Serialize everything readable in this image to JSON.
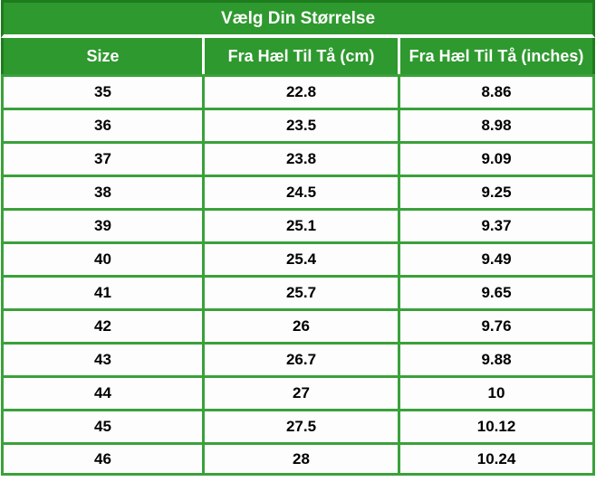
{
  "chart_data": {
    "type": "table",
    "title": "Vælg Din Størrelse",
    "columns": [
      "Size",
      "Fra Hæl Til Tå (cm)",
      "Fra Hæl Til Tå (inches)"
    ],
    "rows": [
      [
        "35",
        "22.8",
        "8.86"
      ],
      [
        "36",
        "23.5",
        "8.98"
      ],
      [
        "37",
        "23.8",
        "9.09"
      ],
      [
        "38",
        "24.5",
        "9.25"
      ],
      [
        "39",
        "25.1",
        "9.37"
      ],
      [
        "40",
        "25.4",
        "9.49"
      ],
      [
        "41",
        "25.7",
        "9.65"
      ],
      [
        "42",
        "26",
        "9.76"
      ],
      [
        "43",
        "26.7",
        "9.88"
      ],
      [
        "44",
        "27",
        "10"
      ],
      [
        "45",
        "27.5",
        "10.12"
      ],
      [
        "46",
        "28",
        "10.24"
      ]
    ]
  },
  "colors": {
    "header_green": "#2e992e",
    "border_green": "#3aa13a",
    "outer_green": "#1e7b1e",
    "cell_background": "#fdfdfd",
    "header_text": "#ffffff",
    "cell_text": "#000000"
  }
}
